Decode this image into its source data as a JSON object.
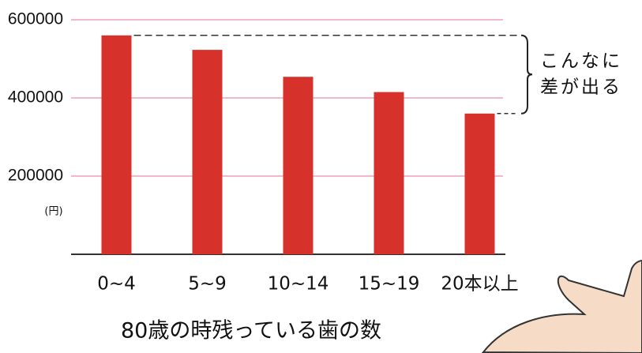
{
  "chart_data": {
    "type": "bar",
    "title": "80歳の時残っている歯の数",
    "y_unit": "(円)",
    "annotation": [
      "こんなに",
      "差が出る"
    ],
    "categories": [
      "0~4",
      "5~9",
      "10~14",
      "15~19",
      "20本以上"
    ],
    "values": [
      560000,
      523000,
      454000,
      415000,
      360000
    ],
    "color": "#d6322b",
    "ylim": [
      0,
      600000
    ],
    "yticks": [
      200000,
      400000,
      600000
    ],
    "grid": true,
    "grid_color": "#f0a0b8"
  }
}
